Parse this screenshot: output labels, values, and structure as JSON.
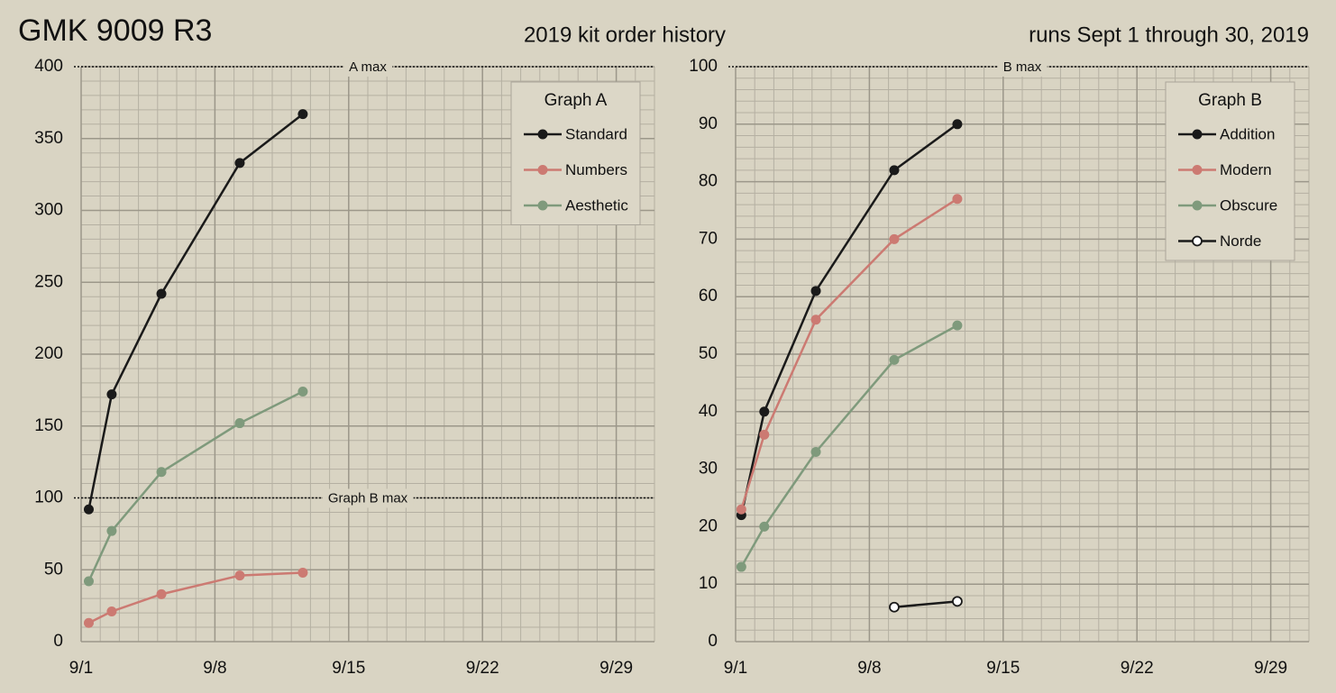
{
  "title": "GMK 9009 R3",
  "subtitle": "2019 kit order history",
  "note": "runs Sept 1 through 30, 2019",
  "chart_data": [
    {
      "type": "line",
      "legend_title": "Graph A",
      "legend": "upper right",
      "grid": true,
      "x": [
        1.4,
        2.6,
        5.2,
        9.3,
        12.6
      ],
      "xlim": [
        1,
        31
      ],
      "xticks": [
        {
          "value": 1,
          "label": "9/1"
        },
        {
          "value": 8,
          "label": "9/8"
        },
        {
          "value": 15,
          "label": "9/15"
        },
        {
          "value": 22,
          "label": "9/22"
        },
        {
          "value": 29,
          "label": "9/29"
        }
      ],
      "ylim": [
        0,
        400
      ],
      "yticks": [
        0,
        50,
        100,
        150,
        200,
        250,
        300,
        350,
        400
      ],
      "reference_lines": [
        {
          "value": 400,
          "label": "A max"
        },
        {
          "value": 100,
          "label": "Graph B max"
        }
      ],
      "series": [
        {
          "name": "Standard",
          "color": "#1a1a1a",
          "values": [
            92,
            172,
            242,
            333,
            367
          ]
        },
        {
          "name": "Numbers",
          "color": "#cc7a72",
          "values": [
            13,
            21,
            33,
            46,
            48
          ]
        },
        {
          "name": "Aesthetic",
          "color": "#7f9a7c",
          "values": [
            42,
            77,
            118,
            152,
            174
          ]
        }
      ]
    },
    {
      "type": "line",
      "legend_title": "Graph B",
      "legend": "upper right",
      "grid": true,
      "x": [
        1.3,
        2.5,
        5.2,
        9.3,
        12.6
      ],
      "xlim": [
        1,
        31
      ],
      "xticks": [
        {
          "value": 1,
          "label": "9/1"
        },
        {
          "value": 8,
          "label": "9/8"
        },
        {
          "value": 15,
          "label": "9/15"
        },
        {
          "value": 22,
          "label": "9/22"
        },
        {
          "value": 29,
          "label": "9/29"
        }
      ],
      "ylim": [
        0,
        100
      ],
      "yticks": [
        0,
        10,
        20,
        30,
        40,
        50,
        60,
        70,
        80,
        90,
        100
      ],
      "reference_lines": [
        {
          "value": 100,
          "label": "B max"
        }
      ],
      "series": [
        {
          "name": "Addition",
          "color": "#1a1a1a",
          "values": [
            22,
            40,
            61,
            82,
            90
          ]
        },
        {
          "name": "Modern",
          "color": "#cc7a72",
          "values": [
            23,
            36,
            56,
            70,
            77
          ]
        },
        {
          "name": "Obscure",
          "color": "#7f9a7c",
          "values": [
            13,
            20,
            33,
            49,
            55
          ]
        },
        {
          "name": "Norde",
          "color": "#1a1a1a",
          "hollow": true,
          "values": [
            null,
            null,
            null,
            6,
            7
          ]
        }
      ]
    }
  ]
}
